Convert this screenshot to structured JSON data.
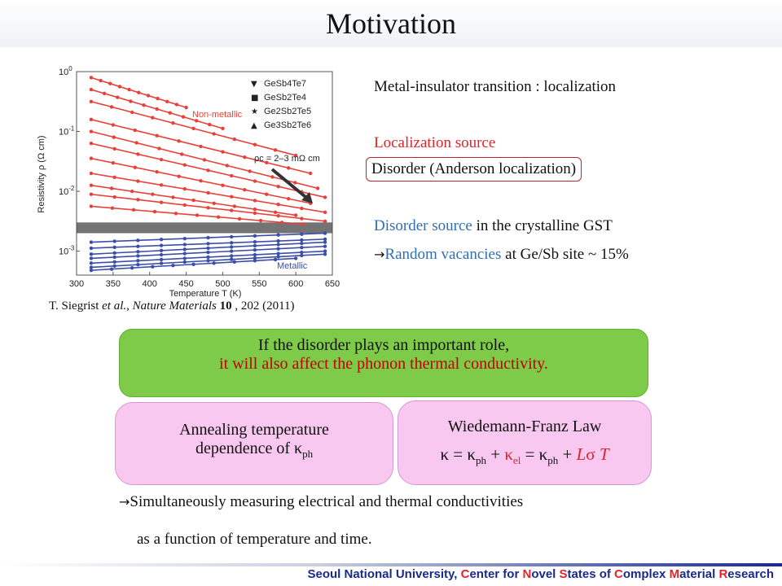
{
  "title": "Motivation",
  "citation": {
    "authors": "T. Siegrist",
    "etal": " et al.",
    "sep": ", ",
    "journal": "Nature Materials",
    "volume": "10",
    "rest": " , 202 (2011)"
  },
  "right_text": {
    "mit": "Metal-insulator transition : localization",
    "loc_source": "Localization source",
    "disorder": "Disorder (Anderson localization)",
    "disorder_source_colored": "Disorder source",
    "disorder_source_rest": " in the crystalline GST",
    "arrow": "→",
    "random_colored": "Random vacancies",
    "random_rest": " at Ge/Sb site ~ 15%"
  },
  "green_box": {
    "line1": "If the disorder plays an important role,",
    "line2": "it will also affect the phonon thermal conductivity."
  },
  "annealing_box": {
    "line1": "Annealing temperature",
    "line2": "dependence of κ",
    "sub": "ph"
  },
  "wf_box": {
    "title": "Wiedemann-Franz Law",
    "kappa": "κ",
    "eq": " = ",
    "plus": " + ",
    "ph": "ph",
    "el": "el",
    "L": "L",
    "sigma": "σ",
    "T": "T"
  },
  "bottom": {
    "arrow": "→",
    "line1": "Simultaneously measuring electrical and thermal conductivities",
    "line2": "as a function of temperature  and time."
  },
  "footer": {
    "p1": "Seoul National University, ",
    "C1": "C",
    "p2": "enter for ",
    "N": "N",
    "p3": "ovel ",
    "S": "S",
    "p4": "tates of ",
    "C2": "C",
    "p5": "omplex ",
    "M": "M",
    "p6": "aterial ",
    "R": "R",
    "p7": "esearch"
  },
  "colors": {
    "red": "#e0242c",
    "blue": "#2e6fb6",
    "green": "#7dcb48",
    "pink": "#f8c8f0",
    "navy": "#1a2a8a",
    "nonmetal_series": "#e8403a",
    "metal_series": "#3b4ea8"
  },
  "chart_data": {
    "type": "line",
    "xlabel": "Temperature T (K)",
    "ylabel": "Resistivity ρ (Ω cm)",
    "xlim": [
      300,
      650
    ],
    "ylim_log10": [
      -3.4,
      0
    ],
    "x_ticks": [
      300,
      350,
      400,
      450,
      500,
      550,
      600,
      650
    ],
    "y_ticks_exp": [
      0,
      -1,
      -2,
      -3
    ],
    "y_ticks_base": "10",
    "legend": [
      "GeSb4Te7",
      "GeSb2Te4",
      "Ge2Sb2Te5",
      "Ge3Sb2Te6"
    ],
    "legend_markers": [
      "▼",
      "■",
      "★",
      "▲"
    ],
    "legend_placement": "top-right",
    "annotations": {
      "nonmetallic": "Non-metallic",
      "metallic": "Metallic",
      "rho_c": "ρc = 2–3 mΩ cm"
    },
    "critical_band_log10": [
      -2.7,
      -2.52
    ],
    "series_nonmetallic": [
      {
        "x": [
          320,
          450
        ],
        "y_log10": [
          -0.1,
          -0.6
        ]
      },
      {
        "x": [
          320,
          500
        ],
        "y_log10": [
          -0.3,
          -0.95
        ]
      },
      {
        "x": [
          320,
          600
        ],
        "y_log10": [
          -0.5,
          -1.4
        ]
      },
      {
        "x": [
          320,
          620
        ],
        "y_log10": [
          -0.8,
          -1.7
        ]
      },
      {
        "x": [
          320,
          630
        ],
        "y_log10": [
          -1.0,
          -1.95
        ]
      },
      {
        "x": [
          320,
          640
        ],
        "y_log10": [
          -1.2,
          -2.1
        ]
      },
      {
        "x": [
          320,
          620
        ],
        "y_log10": [
          -1.45,
          -2.2
        ]
      },
      {
        "x": [
          320,
          640
        ],
        "y_log10": [
          -1.7,
          -2.35
        ]
      },
      {
        "x": [
          320,
          600
        ],
        "y_log10": [
          -1.9,
          -2.4
        ]
      },
      {
        "x": [
          320,
          640
        ],
        "y_log10": [
          -2.05,
          -2.5
        ]
      },
      {
        "x": [
          320,
          610
        ],
        "y_log10": [
          -2.25,
          -2.55
        ]
      }
    ],
    "series_metallic": [
      {
        "x": [
          320,
          640
        ],
        "y_log10": [
          -2.85,
          -2.7
        ]
      },
      {
        "x": [
          320,
          640
        ],
        "y_log10": [
          -2.95,
          -2.8
        ]
      },
      {
        "x": [
          320,
          640
        ],
        "y_log10": [
          -3.05,
          -2.85
        ]
      },
      {
        "x": [
          320,
          640
        ],
        "y_log10": [
          -3.12,
          -2.92
        ]
      },
      {
        "x": [
          320,
          640
        ],
        "y_log10": [
          -3.2,
          -3.0
        ]
      },
      {
        "x": [
          320,
          640
        ],
        "y_log10": [
          -3.27,
          -3.05
        ]
      },
      {
        "x": [
          320,
          600
        ],
        "y_log10": [
          -3.32,
          -3.12
        ]
      }
    ]
  }
}
